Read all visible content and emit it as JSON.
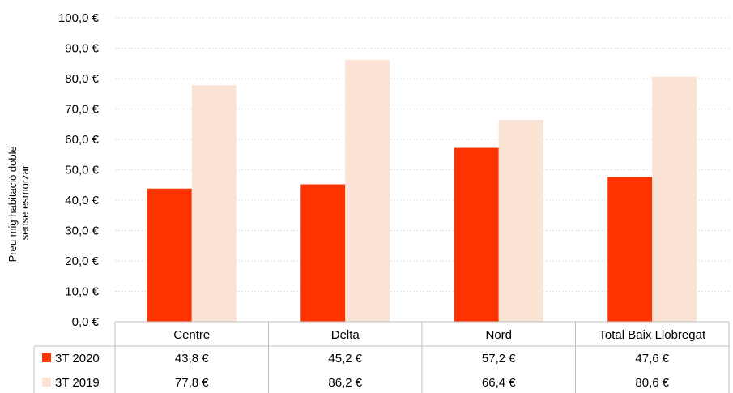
{
  "chart_data": {
    "type": "bar",
    "title": "",
    "xlabel": "",
    "ylabel": [
      "Preu mig habitació doble",
      "sense esmorzar"
    ],
    "ylim": [
      0,
      100
    ],
    "ytick_step": 10,
    "ytick_labels": [
      "0,0 €",
      "10,0 €",
      "20,0 €",
      "30,0 €",
      "40,0 €",
      "50,0 €",
      "60,0 €",
      "70,0 €",
      "80,0 €",
      "90,0 €",
      "100,0 €"
    ],
    "grid": true,
    "legend": "data-table",
    "categories": [
      "Centre",
      "Delta",
      "Nord",
      "Total Baix Llobregat"
    ],
    "series": [
      {
        "name": "3T 2020",
        "color": "#ff3300",
        "values": [
          43.8,
          45.2,
          57.2,
          47.6
        ],
        "labels": [
          "43,8 €",
          "45,2 €",
          "57,2 €",
          "47,6 €"
        ]
      },
      {
        "name": "3T 2019",
        "color": "#fbe3d6",
        "values": [
          77.8,
          86.2,
          66.4,
          80.6
        ],
        "labels": [
          "77,8 €",
          "86,2 €",
          "66,4 €",
          "80,6 €"
        ]
      }
    ]
  }
}
